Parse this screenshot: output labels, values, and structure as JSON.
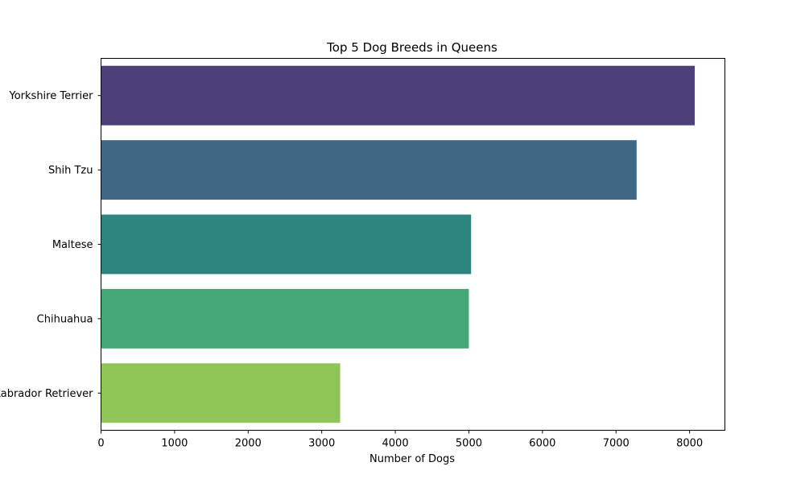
{
  "chart_data": {
    "type": "bar",
    "orientation": "horizontal",
    "title": "Top 5 Dog Breeds in Queens",
    "xlabel": "Number of Dogs",
    "ylabel": "",
    "categories": [
      "Yorkshire Terrier",
      "Shih Tzu",
      "Maltese",
      "Chihuahua",
      "Labrador Retriever"
    ],
    "values": [
      8070,
      7280,
      5030,
      5000,
      3250
    ],
    "colors": [
      "#4c407a",
      "#3e6883",
      "#2e857f",
      "#47a877",
      "#8fc556"
    ],
    "xlim": [
      0,
      8480
    ],
    "xticks": [
      0,
      1000,
      2000,
      3000,
      4000,
      5000,
      6000,
      7000,
      8000
    ],
    "grid": false,
    "legend": "none"
  }
}
